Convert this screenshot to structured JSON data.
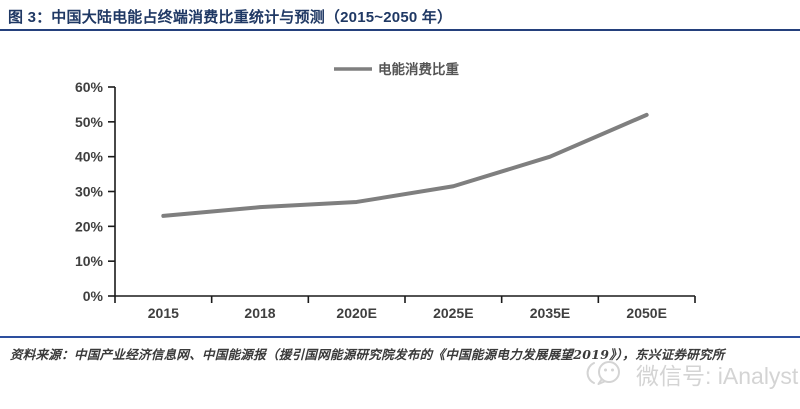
{
  "header": {
    "title": "图 3：中国大陆电能占终端消费比重统计与预测（2015~2050 年）"
  },
  "chart_data": {
    "type": "line",
    "categories": [
      "2015",
      "2018",
      "2020E",
      "2025E",
      "2035E",
      "2050E"
    ],
    "series": [
      {
        "name": "电能消费比重",
        "values": [
          23,
          25.5,
          27,
          31.5,
          40,
          52
        ]
      }
    ],
    "title": "",
    "xlabel": "",
    "ylabel": "",
    "ylim": [
      0,
      60
    ],
    "y_ticks": [
      "0%",
      "10%",
      "20%",
      "30%",
      "40%",
      "50%",
      "60%"
    ],
    "grid": false,
    "legend_position": "top-center",
    "line_color": "#7f7f7f",
    "axis_color": "#1a1a1a",
    "tick_label_color": "#3f3f3f"
  },
  "footer": {
    "source_label": "资料来源：",
    "source_text": "中国产业经济信息网、中国能源报（援引国网能源研究院发布的《中国能源电力发展展望2019》），东兴证券研究所"
  },
  "watermark": {
    "icon": "wechat-icon",
    "text": "微信号: iAnalyst"
  },
  "colors": {
    "title": "#1f3864",
    "rule_top": "#24407c",
    "rule_bottom": "#2d4f9e",
    "watermark": "#d4d4d4"
  }
}
